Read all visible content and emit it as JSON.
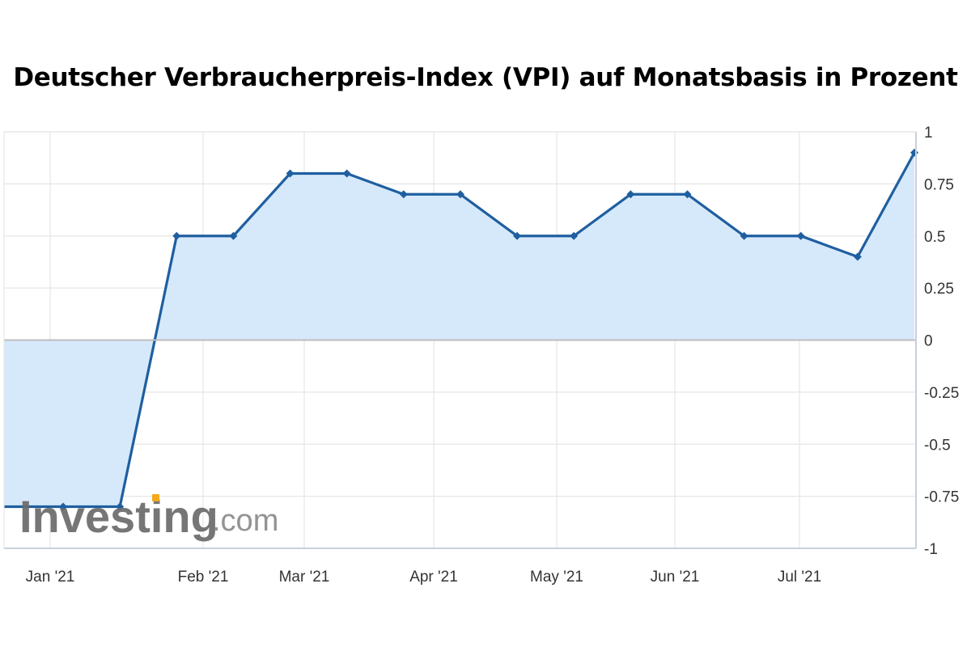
{
  "title": "Deutscher Verbraucherpreis-Index (VPI) auf Monatsbasis in Prozent",
  "watermark": {
    "brand": "Investing",
    "tld": ".com",
    "accent": "#f4a81d"
  },
  "colors": {
    "line": "#1f5fa0",
    "fill": "#d6e9fb",
    "grid": "#e6e6e6",
    "zero": "#bdbdbd",
    "axis": "#c8d0dc"
  },
  "chart_data": {
    "type": "area",
    "title": "Deutscher Verbraucherpreis-Index (VPI) auf Monatsbasis in Prozent",
    "xlabel": "",
    "ylabel": "",
    "x_tick_labels": [
      "Jan '21",
      "Feb '21",
      "Mar '21",
      "Apr '21",
      "May '21",
      "Jun '21",
      "Jul '21"
    ],
    "y_tick_labels": [
      "1",
      "0.75",
      "0.5",
      "0.25",
      "0",
      "-0.25",
      "-0.5",
      "-0.75",
      "-1"
    ],
    "y_ticks": [
      1,
      0.75,
      0.5,
      0.25,
      0,
      -0.25,
      -0.5,
      -0.75,
      -1
    ],
    "ylim": [
      -1,
      1
    ],
    "grid": true,
    "y_axis_side": "right",
    "series": [
      {
        "values": [
          -0.8,
          -0.8,
          0.5,
          0.5,
          0.8,
          0.8,
          0.7,
          0.7,
          0.5,
          0.5,
          0.7,
          0.7,
          0.5,
          0.5,
          0.4,
          0.9
        ]
      }
    ]
  }
}
